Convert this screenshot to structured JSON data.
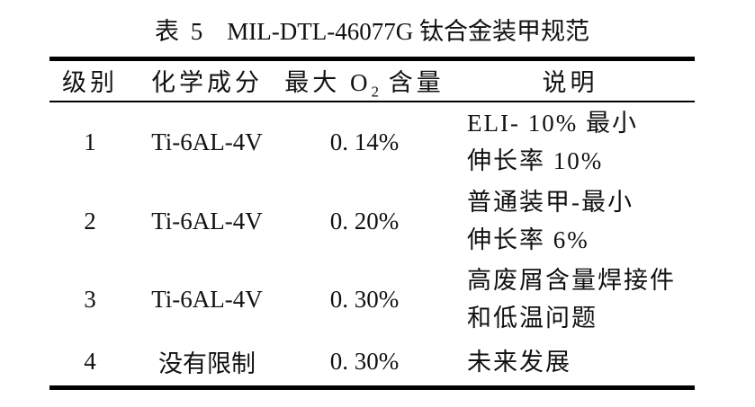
{
  "caption": {
    "label": "表 5",
    "title": "MIL-DTL-46077G 钛合金装甲规范"
  },
  "table": {
    "headers": {
      "grade": "级别",
      "composition": "化学成分",
      "oxygen_pre": "最大 O",
      "oxygen_sub": "2",
      "oxygen_post": " 含量",
      "description": "说明"
    },
    "rows": [
      {
        "grade": "1",
        "composition": "Ti-6AL-4V",
        "max_o2": "0. 14%",
        "description": [
          "ELI- 10% 最小",
          "伸长率 10%"
        ]
      },
      {
        "grade": "2",
        "composition": "Ti-6AL-4V",
        "max_o2": "0. 20%",
        "description": [
          "普通装甲-最小",
          "伸长率 6%"
        ]
      },
      {
        "grade": "3",
        "composition": "Ti-6AL-4V",
        "max_o2": "0. 30%",
        "description": [
          "高废屑含量焊接件",
          "和低温问题"
        ]
      },
      {
        "grade": "4",
        "composition": "没有限制",
        "max_o2": "0. 30%",
        "description": [
          "未来发展"
        ]
      }
    ]
  },
  "colors": {
    "background": "#ffffff",
    "text": "#111111",
    "rule": "#000000"
  }
}
